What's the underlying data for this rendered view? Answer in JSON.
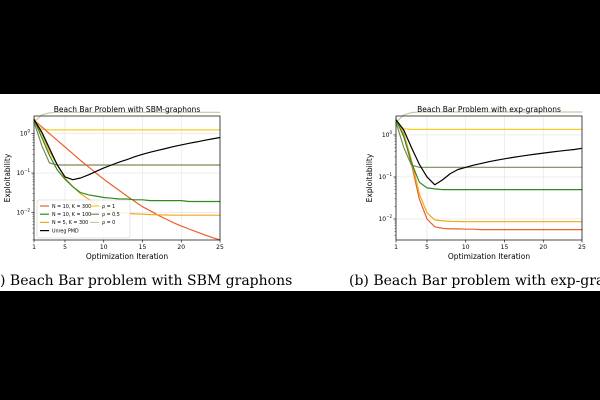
{
  "chart_data": [
    {
      "type": "line",
      "title": "Beach Bar Problem with SBM-graphons",
      "xlabel": "Optimization Iteration",
      "ylabel": "Exploitability",
      "caption": ") Beach Bar problem with SBM graphons",
      "xlim": [
        1,
        25
      ],
      "ylim_log10": [
        -2.7,
        0.45
      ],
      "y_scale": "log",
      "grid": true,
      "legend_placement": "lower-left",
      "xticks": [
        "1",
        "5",
        "10",
        "15",
        "20",
        "25"
      ],
      "yticks": [
        "10^0",
        "10^-1",
        "10^-2"
      ],
      "x": [
        1,
        2,
        3,
        4,
        5,
        6,
        7,
        8,
        9,
        10,
        11,
        12,
        13,
        14,
        15,
        16,
        17,
        18,
        19,
        20,
        21,
        22,
        23,
        24,
        25
      ],
      "series": [
        {
          "name": "N = 10, K = 300",
          "color": "#e8622a",
          "legend_col": 0,
          "values": [
            2.2,
            1.5,
            1.0,
            0.68,
            0.46,
            0.31,
            0.21,
            0.145,
            0.1,
            0.07,
            0.05,
            0.036,
            0.026,
            0.019,
            0.014,
            0.011,
            0.0085,
            0.0068,
            0.0055,
            0.0045,
            0.0038,
            0.0032,
            0.0027,
            0.0023,
            0.002
          ]
        },
        {
          "name": "N = 10, K = 100",
          "color": "#2e8b1e",
          "legend_col": 0,
          "values": [
            2.3,
            0.8,
            0.28,
            0.12,
            0.07,
            0.045,
            0.032,
            0.028,
            0.026,
            0.024,
            0.023,
            0.022,
            0.022,
            0.021,
            0.021,
            0.02,
            0.02,
            0.02,
            0.02,
            0.02,
            0.019,
            0.019,
            0.019,
            0.019,
            0.019
          ]
        },
        {
          "name": "N = 5, K = 300",
          "color": "#f2a81d",
          "legend_col": 0,
          "values": [
            2.4,
            1.0,
            0.35,
            0.16,
            0.075,
            0.045,
            0.03,
            0.022,
            0.016,
            0.013,
            0.011,
            0.01,
            0.0095,
            0.0092,
            0.009,
            0.0088,
            0.0087,
            0.0086,
            0.0085,
            0.0085,
            0.0085,
            0.0085,
            0.0085,
            0.0085,
            0.0085
          ]
        },
        {
          "name": "Unreg PMD",
          "color": "#000000",
          "legend_col": 0,
          "values": [
            2.3,
            1.1,
            0.42,
            0.16,
            0.08,
            0.068,
            0.075,
            0.09,
            0.11,
            0.135,
            0.16,
            0.19,
            0.22,
            0.26,
            0.3,
            0.34,
            0.38,
            0.42,
            0.47,
            0.52,
            0.57,
            0.62,
            0.68,
            0.74,
            0.8
          ]
        },
        {
          "name": "ρ = 1",
          "color": "#f4cf27",
          "legend_col": 1,
          "values": [
            2.0,
            1.3,
            1.25,
            1.25,
            1.25,
            1.25,
            1.25,
            1.25,
            1.25,
            1.25,
            1.25,
            1.25,
            1.25,
            1.25,
            1.25,
            1.25,
            1.25,
            1.25,
            1.25,
            1.25,
            1.25,
            1.25,
            1.25,
            1.25,
            1.25
          ]
        },
        {
          "name": "ρ = 0.5",
          "color": "#7a8a55",
          "legend_col": 1,
          "values": [
            2.0,
            0.5,
            0.18,
            0.16,
            0.16,
            0.16,
            0.16,
            0.16,
            0.16,
            0.16,
            0.16,
            0.16,
            0.16,
            0.16,
            0.16,
            0.16,
            0.16,
            0.16,
            0.16,
            0.16,
            0.16,
            0.16,
            0.16,
            0.16,
            0.16
          ]
        },
        {
          "name": "ρ = 0",
          "color": "#c9c7a6",
          "legend_col": 1,
          "values": [
            2.0,
            3.0,
            3.4,
            3.5,
            3.5,
            3.5,
            3.5,
            3.5,
            3.5,
            3.5,
            3.5,
            3.5,
            3.5,
            3.5,
            3.5,
            3.5,
            3.5,
            3.5,
            3.5,
            3.5,
            3.5,
            3.5,
            3.5,
            3.5,
            3.5
          ]
        }
      ]
    },
    {
      "type": "line",
      "title": "Beach Bar Problem with exp-graphons",
      "xlabel": "Optimization Iteration",
      "ylabel": "Exploitability",
      "caption": "(b) Beach Bar problem with exp-grapho",
      "xlim": [
        1,
        25
      ],
      "ylim_log10": [
        -2.5,
        0.45
      ],
      "y_scale": "log",
      "grid": true,
      "legend_placement": "none",
      "xticks": [
        "1",
        "5",
        "10",
        "15",
        "20",
        "25"
      ],
      "yticks": [
        "10^0",
        "10^-1",
        "10^-2"
      ],
      "x": [
        1,
        2,
        3,
        4,
        5,
        6,
        7,
        8,
        9,
        10,
        11,
        12,
        13,
        14,
        15,
        16,
        17,
        18,
        19,
        20,
        21,
        22,
        23,
        24,
        25
      ],
      "series": [
        {
          "name": "N = 10, K = 300",
          "color": "#e8622a",
          "values": [
            2.3,
            1.0,
            0.2,
            0.03,
            0.01,
            0.0065,
            0.006,
            0.0058,
            0.0058,
            0.0057,
            0.0057,
            0.0056,
            0.0056,
            0.0056,
            0.0056,
            0.0056,
            0.0056,
            0.0056,
            0.0056,
            0.0056,
            0.0056,
            0.0056,
            0.0056,
            0.0056,
            0.0056
          ]
        },
        {
          "name": "N = 10, K = 100",
          "color": "#2e8b1e",
          "values": [
            2.3,
            0.9,
            0.22,
            0.075,
            0.055,
            0.052,
            0.05,
            0.05,
            0.05,
            0.05,
            0.05,
            0.05,
            0.05,
            0.05,
            0.05,
            0.05,
            0.05,
            0.05,
            0.05,
            0.05,
            0.05,
            0.05,
            0.05,
            0.05,
            0.05
          ]
        },
        {
          "name": "N = 5, K = 300",
          "color": "#f2a81d",
          "values": [
            2.3,
            1.1,
            0.25,
            0.04,
            0.014,
            0.0095,
            0.009,
            0.0088,
            0.0087,
            0.0086,
            0.0086,
            0.0086,
            0.0086,
            0.0086,
            0.0086,
            0.0086,
            0.0086,
            0.0086,
            0.0086,
            0.0086,
            0.0086,
            0.0086,
            0.0086,
            0.0086,
            0.0086
          ]
        },
        {
          "name": "Unreg PMD",
          "color": "#000000",
          "values": [
            2.3,
            1.3,
            0.5,
            0.2,
            0.1,
            0.065,
            0.085,
            0.12,
            0.15,
            0.17,
            0.19,
            0.21,
            0.23,
            0.25,
            0.27,
            0.29,
            0.31,
            0.33,
            0.35,
            0.37,
            0.39,
            0.41,
            0.43,
            0.45,
            0.48
          ]
        },
        {
          "name": "ρ = 1",
          "color": "#f4cf27",
          "values": [
            2.0,
            1.4,
            1.35,
            1.35,
            1.35,
            1.35,
            1.35,
            1.35,
            1.35,
            1.35,
            1.35,
            1.35,
            1.35,
            1.35,
            1.35,
            1.35,
            1.35,
            1.35,
            1.35,
            1.35,
            1.35,
            1.35,
            1.35,
            1.35,
            1.35
          ]
        },
        {
          "name": "ρ = 0.5",
          "color": "#7a8a55",
          "values": [
            2.0,
            0.5,
            0.19,
            0.17,
            0.17,
            0.17,
            0.17,
            0.17,
            0.17,
            0.17,
            0.17,
            0.17,
            0.17,
            0.17,
            0.17,
            0.17,
            0.17,
            0.17,
            0.17,
            0.17,
            0.17,
            0.17,
            0.17,
            0.17,
            0.17
          ]
        },
        {
          "name": "ρ = 0",
          "color": "#c9c7a6",
          "values": [
            2.0,
            3.0,
            3.4,
            3.5,
            3.5,
            3.5,
            3.5,
            3.5,
            3.5,
            3.5,
            3.5,
            3.5,
            3.5,
            3.5,
            3.5,
            3.5,
            3.5,
            3.5,
            3.5,
            3.5,
            3.5,
            3.5,
            3.5,
            3.5,
            3.5
          ]
        }
      ]
    }
  ]
}
